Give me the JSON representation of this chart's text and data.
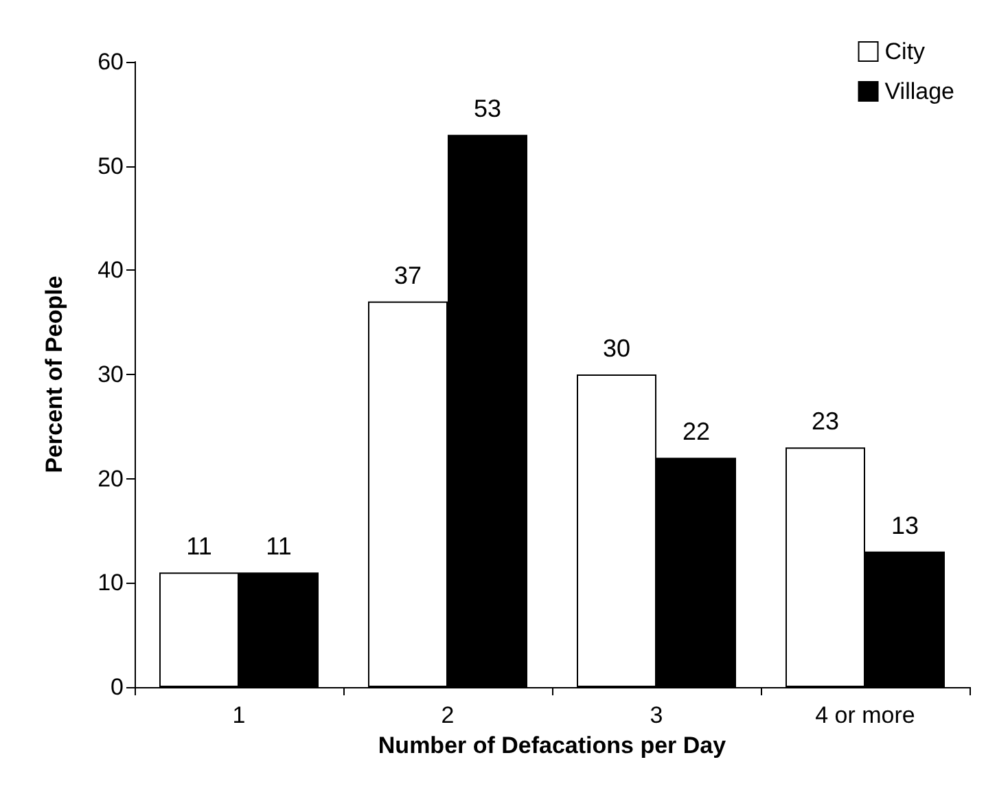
{
  "chart_data": {
    "type": "bar",
    "xlabel": "Number of Defacations per Day",
    "ylabel": "Percent of People",
    "categories": [
      "1",
      "2",
      "3",
      "4 or more"
    ],
    "series": [
      {
        "name": "City",
        "color": "#ffffff",
        "values": [
          11,
          37,
          30,
          23
        ]
      },
      {
        "name": "Village",
        "color": "#000000",
        "values": [
          11,
          53,
          22,
          13
        ]
      }
    ],
    "ylim": [
      0,
      60
    ],
    "yticks": [
      0,
      10,
      20,
      30,
      40,
      50,
      60
    ],
    "grid": false,
    "legend": "top right",
    "data_labels": true
  }
}
